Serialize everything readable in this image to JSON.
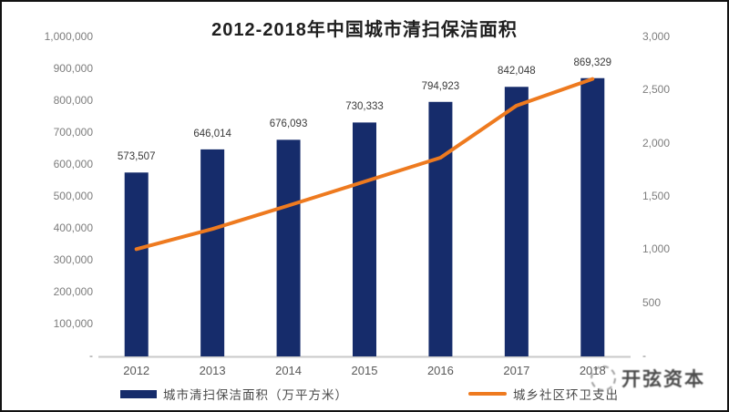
{
  "page": {
    "background": "#ffffff",
    "border_color": "#121212"
  },
  "chart_data": {
    "type": "combo",
    "title": "2012-2018年中国城市清扫保洁面积",
    "categories": [
      "2012",
      "2013",
      "2014",
      "2015",
      "2016",
      "2017",
      "2018"
    ],
    "series": [
      {
        "name": "城市清扫保洁面积（万平方米）",
        "type": "bar",
        "axis": "left",
        "color": "#162C6B",
        "values": [
          573507,
          646014,
          676093,
          730333,
          794923,
          842048,
          869329
        ],
        "data_labels": [
          "573,507",
          "646,014",
          "676,093",
          "730,333",
          "794,923",
          "842,048",
          "869,329"
        ]
      },
      {
        "name": "城乡社区环卫支出",
        "type": "line",
        "axis": "right",
        "color": "#EE7A1F",
        "values": [
          1000,
          1190,
          1410,
          1635,
          1860,
          2350,
          2600
        ]
      }
    ],
    "left_axis": {
      "min": 0,
      "max": 1000000,
      "tick_step": 100000,
      "tick_labels": [
        "-",
        "100,000",
        "200,000",
        "300,000",
        "400,000",
        "500,000",
        "600,000",
        "700,000",
        "800,000",
        "900,000",
        "1,000,000"
      ]
    },
    "right_axis": {
      "min": 0,
      "max": 3000,
      "tick_step": 500,
      "tick_labels": [
        "-",
        "500",
        "1,000",
        "1,500",
        "2,000",
        "2,500",
        "3,000"
      ]
    },
    "grid": false,
    "legend_position": "bottom",
    "axis_line_color": "#c9c9c9"
  },
  "watermark": {
    "text": "开弦资本"
  }
}
